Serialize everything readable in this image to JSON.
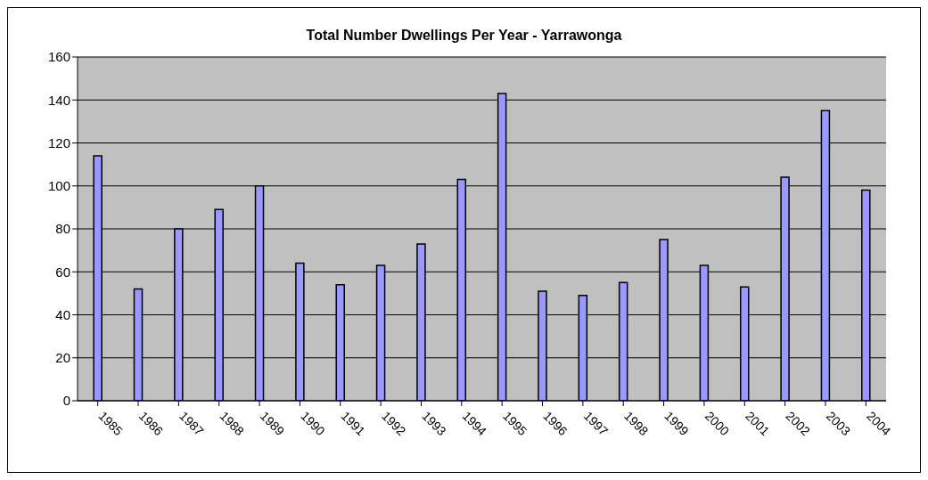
{
  "chart_data": {
    "type": "bar",
    "title": "Total Number Dwellings Per Year - Yarrawonga",
    "categories": [
      "1985",
      "1986",
      "1987",
      "1988",
      "1989",
      "1990",
      "1991",
      "1992",
      "1993",
      "1994",
      "1995",
      "1996",
      "1997",
      "1998",
      "1999",
      "2000",
      "2001",
      "2002",
      "2003",
      "2004"
    ],
    "values": [
      114,
      52,
      80,
      89,
      100,
      64,
      54,
      63,
      73,
      103,
      143,
      51,
      49,
      55,
      75,
      63,
      53,
      104,
      135,
      98
    ],
    "color": "#9999ff",
    "ylim": [
      0,
      160
    ],
    "yticks": [
      0,
      20,
      40,
      60,
      80,
      100,
      120,
      140,
      160
    ],
    "grid": "y",
    "legend": false
  }
}
